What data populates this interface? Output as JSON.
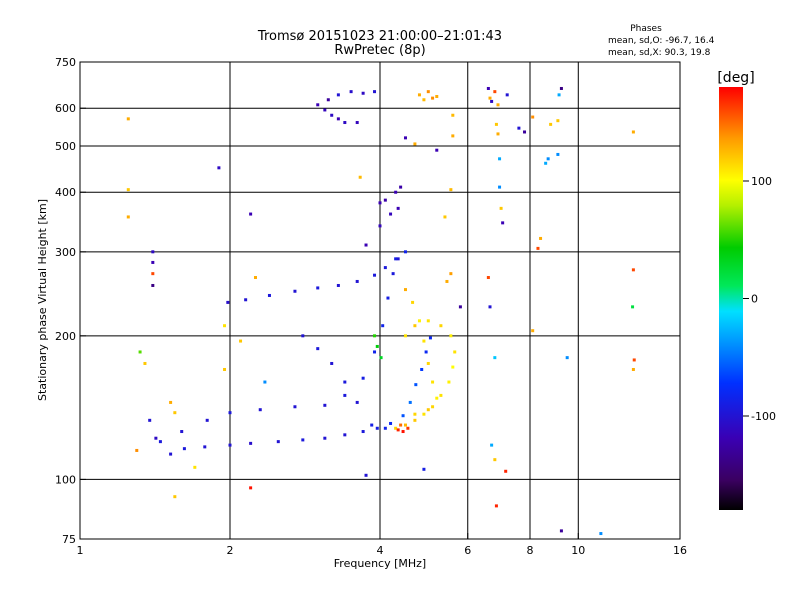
{
  "chart_data": {
    "type": "scatter",
    "title": "Tromsø 20151023 21:00:00–21:01:43",
    "subtitle": "RwPretec (8p)",
    "xlabel": "Frequency [MHz]",
    "ylabel": "Stationary phase Virtual Height [km]",
    "x_scale": "log",
    "y_scale": "log",
    "xlim": [
      1,
      16
    ],
    "ylim": [
      75,
      750
    ],
    "x_ticks": [
      "1",
      "2",
      "4",
      "6",
      "8",
      "10",
      "16"
    ],
    "x_tick_values": [
      1,
      2,
      4,
      6,
      8,
      10,
      16
    ],
    "x_gridlines": [
      2,
      4,
      6,
      8,
      10
    ],
    "y_ticks": [
      "75",
      "100",
      "200",
      "300",
      "400",
      "500",
      "600",
      "750"
    ],
    "y_tick_values": [
      75,
      100,
      200,
      300,
      400,
      500,
      600,
      750
    ],
    "y_gridlines": [
      100,
      200,
      300,
      400,
      500,
      600
    ],
    "grid": true,
    "legend_header": "Phases",
    "legend_lines": [
      "mean, sd,O:  -96.7, 16.4",
      "mean, sd,X:  90.3, 19.8"
    ],
    "colorbar": {
      "label": "[deg]",
      "range": [
        -180,
        180
      ],
      "ticks": [
        "100",
        "0",
        "-100"
      ],
      "tick_values": [
        100,
        0,
        -100
      ],
      "placement": "right"
    },
    "series": [
      {
        "values": [
          [
            1.52,
            113,
            -100
          ],
          [
            1.62,
            116,
            -95
          ],
          [
            1.78,
            117,
            -100
          ],
          [
            2.0,
            118,
            -100
          ],
          [
            2.2,
            119,
            -105
          ],
          [
            2.5,
            120,
            -100
          ],
          [
            2.8,
            121,
            -95
          ],
          [
            3.1,
            122,
            -100
          ],
          [
            3.4,
            124,
            -100
          ],
          [
            3.7,
            126,
            -95
          ],
          [
            3.95,
            128,
            -90
          ],
          [
            4.2,
            131,
            -80
          ],
          [
            4.45,
            136,
            -60
          ],
          [
            4.6,
            145,
            -50
          ],
          [
            4.72,
            158,
            -60
          ],
          [
            4.85,
            170,
            -70
          ],
          [
            4.95,
            185,
            -80
          ],
          [
            5.05,
            198,
            -80
          ]
        ]
      },
      {
        "values": [
          [
            1.45,
            120,
            -95
          ],
          [
            1.6,
            126,
            -100
          ],
          [
            1.8,
            133,
            -100
          ],
          [
            2.0,
            138,
            -95
          ],
          [
            2.3,
            140,
            -100
          ],
          [
            2.7,
            142,
            -100
          ],
          [
            3.1,
            143,
            -100
          ],
          [
            3.4,
            150,
            -95
          ],
          [
            3.7,
            163,
            -90
          ],
          [
            3.9,
            185,
            -85
          ],
          [
            4.05,
            210,
            -85
          ],
          [
            4.15,
            240,
            -90
          ],
          [
            4.25,
            270,
            -95
          ],
          [
            4.35,
            290,
            -100
          ]
        ]
      },
      {
        "values": [
          [
            1.98,
            235,
            -105
          ],
          [
            2.15,
            238,
            -100
          ],
          [
            2.4,
            243,
            -95
          ],
          [
            2.7,
            248,
            -100
          ],
          [
            3.0,
            252,
            -95
          ],
          [
            3.3,
            255,
            -100
          ],
          [
            3.6,
            260,
            -100
          ],
          [
            3.9,
            268,
            -95
          ],
          [
            4.1,
            278,
            -95
          ],
          [
            4.3,
            290,
            -90
          ],
          [
            4.5,
            300,
            -85
          ]
        ]
      },
      {
        "values": [
          [
            2.8,
            200,
            -100
          ],
          [
            3.0,
            188,
            -95
          ],
          [
            3.2,
            175,
            -100
          ],
          [
            3.4,
            160,
            -95
          ],
          [
            3.6,
            145,
            -100
          ],
          [
            3.85,
            130,
            -90
          ],
          [
            4.1,
            128,
            -85
          ]
        ]
      },
      {
        "values": [
          [
            4.3,
            128,
            115
          ],
          [
            4.5,
            130,
            125
          ],
          [
            4.7,
            133,
            120
          ],
          [
            4.9,
            137,
            110
          ],
          [
            5.1,
            142,
            115
          ],
          [
            5.3,
            150,
            110
          ],
          [
            5.5,
            160,
            105
          ],
          [
            5.6,
            172,
            100
          ],
          [
            5.65,
            185,
            110
          ],
          [
            5.55,
            200,
            105
          ],
          [
            5.3,
            210,
            115
          ],
          [
            5.0,
            215,
            110
          ],
          [
            4.7,
            210,
            120
          ],
          [
            4.5,
            200,
            110
          ]
        ]
      },
      {
        "values": [
          [
            4.5,
            250,
            130
          ],
          [
            4.65,
            235,
            115
          ],
          [
            4.8,
            215,
            105
          ],
          [
            4.9,
            195,
            110
          ],
          [
            5.0,
            175,
            115
          ],
          [
            5.1,
            160,
            110
          ],
          [
            5.2,
            148,
            105
          ],
          [
            5.0,
            140,
            120
          ],
          [
            4.7,
            137,
            115
          ]
        ]
      },
      {
        "values": [
          [
            4.35,
            127,
            170
          ],
          [
            4.45,
            126,
            175
          ],
          [
            4.55,
            128,
            165
          ],
          [
            4.4,
            130,
            150
          ]
        ]
      },
      {
        "values": [
          [
            3.0,
            610,
            -120
          ],
          [
            3.1,
            595,
            -115
          ],
          [
            3.2,
            580,
            -110
          ],
          [
            3.3,
            570,
            -120
          ],
          [
            3.4,
            560,
            -110
          ],
          [
            3.3,
            640,
            -100
          ],
          [
            3.5,
            650,
            -105
          ],
          [
            3.7,
            645,
            -110
          ],
          [
            3.9,
            650,
            -100
          ],
          [
            3.6,
            560,
            -115
          ],
          [
            3.15,
            625,
            -130
          ]
        ]
      },
      {
        "values": [
          [
            4.8,
            640,
            130
          ],
          [
            5.0,
            650,
            140
          ],
          [
            5.2,
            635,
            130
          ],
          [
            4.9,
            625,
            125
          ],
          [
            5.1,
            630,
            140
          ]
        ]
      },
      {
        "values": [
          [
            4.0,
            380,
            -120
          ],
          [
            4.1,
            385,
            -125
          ],
          [
            4.3,
            400,
            -120
          ],
          [
            4.4,
            410,
            -125
          ],
          [
            4.35,
            370,
            -120
          ],
          [
            3.75,
            310,
            -120
          ],
          [
            4.0,
            340,
            -115
          ],
          [
            4.2,
            360,
            -115
          ]
        ]
      },
      {
        "values": [
          [
            1.25,
            570,
            130
          ],
          [
            1.25,
            405,
            120
          ],
          [
            1.25,
            355,
            130
          ],
          [
            1.4,
            300,
            -110
          ],
          [
            1.4,
            285,
            -120
          ],
          [
            1.4,
            270,
            160
          ],
          [
            1.4,
            255,
            -140
          ],
          [
            1.52,
            145,
            130
          ],
          [
            1.55,
            138,
            120
          ],
          [
            1.38,
            133,
            -100
          ],
          [
            1.3,
            115,
            140
          ],
          [
            1.42,
            122,
            -110
          ],
          [
            1.7,
            106,
            110
          ],
          [
            1.55,
            92,
            120
          ],
          [
            1.9,
            450,
            -110
          ],
          [
            2.2,
            360,
            -120
          ],
          [
            2.25,
            265,
            130
          ],
          [
            1.95,
            210,
            110
          ],
          [
            2.1,
            195,
            120
          ],
          [
            2.2,
            96,
            175
          ],
          [
            2.35,
            160,
            -40
          ],
          [
            1.32,
            185,
            60
          ],
          [
            1.35,
            175,
            120
          ],
          [
            1.95,
            170,
            120
          ],
          [
            3.65,
            430,
            125
          ],
          [
            4.5,
            520,
            -120
          ],
          [
            4.7,
            505,
            130
          ],
          [
            5.2,
            490,
            -120
          ],
          [
            5.6,
            580,
            125
          ],
          [
            5.6,
            525,
            130
          ],
          [
            5.55,
            405,
            125
          ],
          [
            5.4,
            355,
            120
          ],
          [
            5.45,
            260,
            130
          ],
          [
            5.55,
            270,
            135
          ],
          [
            5.8,
            230,
            -130
          ],
          [
            6.6,
            660,
            -120
          ],
          [
            6.65,
            630,
            130
          ],
          [
            6.7,
            620,
            -110
          ],
          [
            6.8,
            650,
            160
          ],
          [
            6.9,
            610,
            130
          ],
          [
            6.85,
            555,
            120
          ],
          [
            7.2,
            640,
            -100
          ],
          [
            6.9,
            530,
            130
          ],
          [
            6.95,
            470,
            -30
          ],
          [
            6.95,
            410,
            -40
          ],
          [
            7.0,
            370,
            120
          ],
          [
            7.05,
            345,
            -120
          ],
          [
            6.6,
            265,
            160
          ],
          [
            6.65,
            230,
            -100
          ],
          [
            6.8,
            180,
            -20
          ],
          [
            6.7,
            118,
            -30
          ],
          [
            6.8,
            110,
            120
          ],
          [
            6.85,
            88,
            170
          ],
          [
            7.15,
            104,
            170
          ],
          [
            7.6,
            545,
            -100
          ],
          [
            7.8,
            535,
            -130
          ],
          [
            8.1,
            575,
            140
          ],
          [
            8.3,
            305,
            160
          ],
          [
            8.4,
            320,
            130
          ],
          [
            8.1,
            205,
            130
          ],
          [
            8.7,
            470,
            -40
          ],
          [
            8.6,
            460,
            -30
          ],
          [
            9.1,
            480,
            -40
          ],
          [
            9.1,
            565,
            120
          ],
          [
            9.25,
            660,
            -140
          ],
          [
            9.15,
            640,
            -30
          ],
          [
            9.5,
            180,
            -40
          ],
          [
            9.25,
            78,
            -130
          ],
          [
            11.1,
            77,
            -40
          ],
          [
            12.9,
            535,
            130
          ],
          [
            12.9,
            275,
            160
          ],
          [
            12.85,
            230,
            20
          ],
          [
            12.95,
            178,
            160
          ],
          [
            12.9,
            170,
            130
          ],
          [
            8.8,
            555,
            120
          ],
          [
            3.95,
            190,
            40
          ],
          [
            4.02,
            180,
            30
          ],
          [
            3.9,
            200,
            50
          ],
          [
            4.9,
            105,
            -90
          ],
          [
            3.75,
            102,
            -100
          ]
        ]
      }
    ]
  }
}
